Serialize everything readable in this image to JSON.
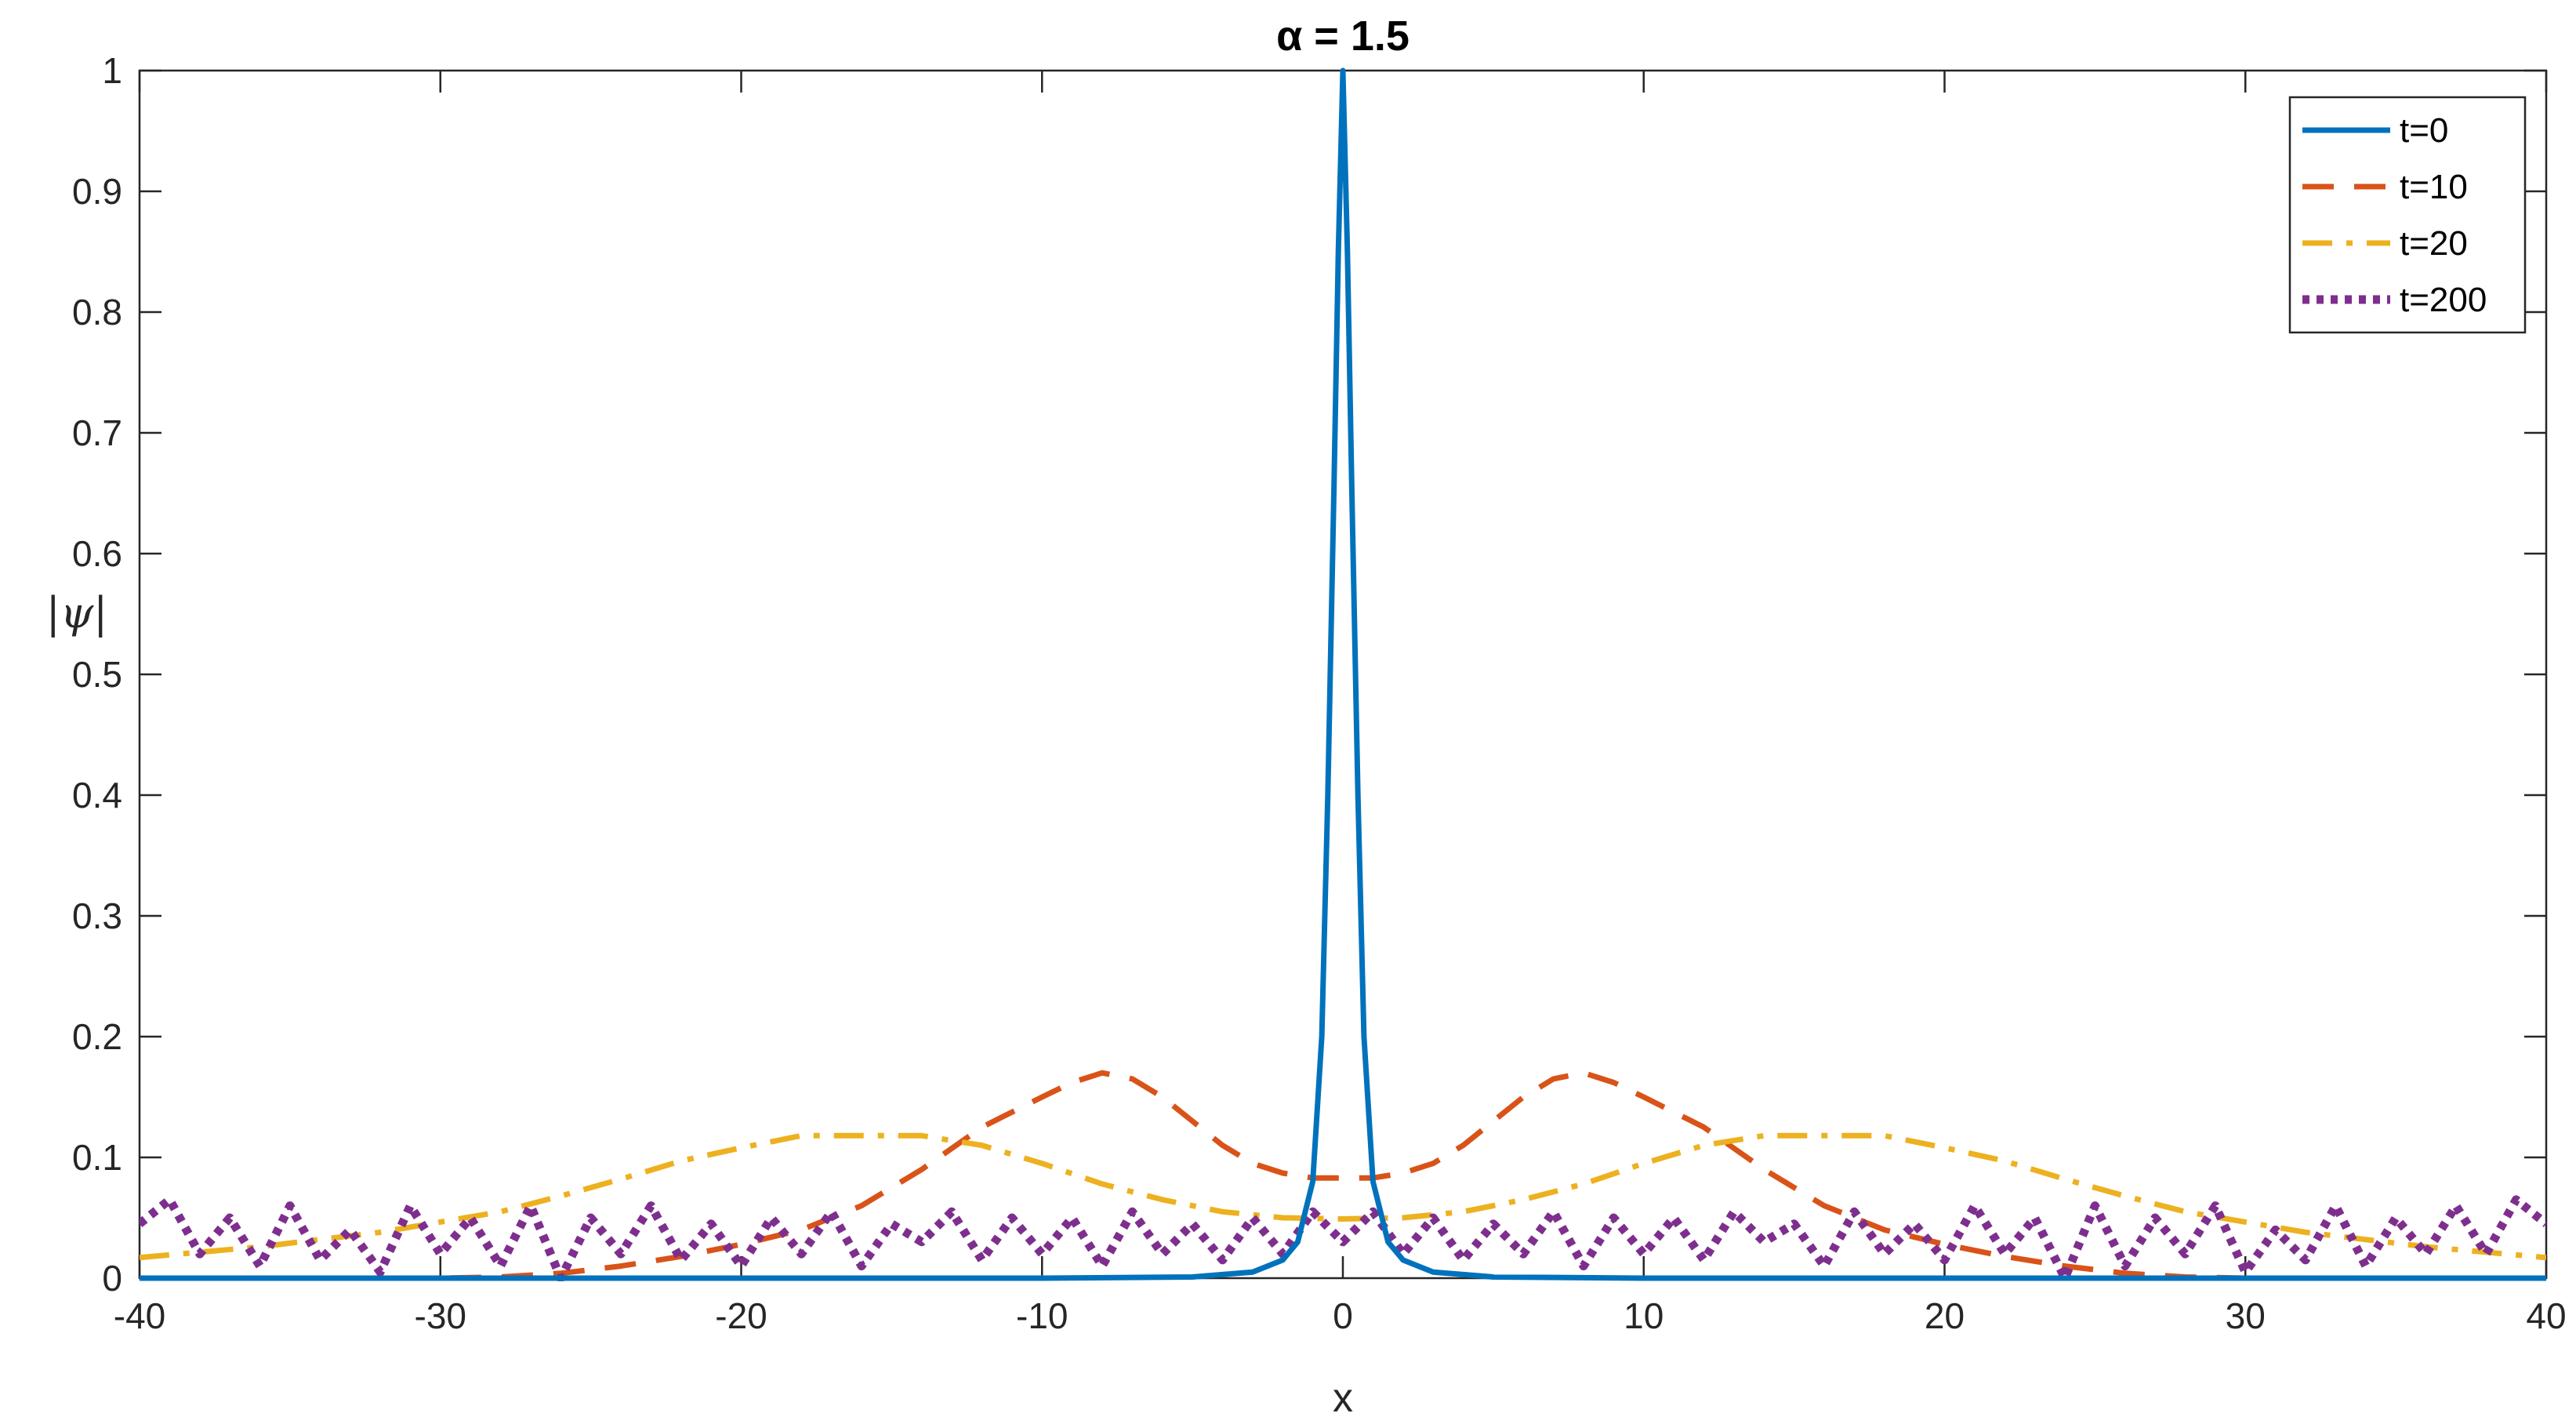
{
  "chart_data": {
    "type": "line",
    "title": "α = 1.5",
    "xlabel": "x",
    "ylabel": "|ψ|",
    "xlim": [
      -40,
      40
    ],
    "ylim": [
      0,
      1
    ],
    "xticks": [
      -40,
      -30,
      -20,
      -10,
      0,
      10,
      20,
      30,
      40
    ],
    "yticks": [
      0,
      0.1,
      0.2,
      0.3,
      0.4,
      0.5,
      0.6,
      0.7,
      0.8,
      0.9,
      1
    ],
    "xtick_labels": [
      "-40",
      "-30",
      "-20",
      "-10",
      "0",
      "10",
      "20",
      "30",
      "40"
    ],
    "ytick_labels": [
      "0",
      "0.1",
      "0.2",
      "0.3",
      "0.4",
      "0.5",
      "0.6",
      "0.7",
      "0.8",
      "0.9",
      "1"
    ],
    "grid": false,
    "legend_position": "top-right",
    "series": [
      {
        "name": "t=0",
        "color": "#0072BD",
        "style": "solid",
        "x": [
          -40,
          -20,
          -10,
          -5,
          -3,
          -2,
          -1.5,
          -1,
          -0.7,
          -0.5,
          -0.3,
          -0.15,
          0,
          0.15,
          0.3,
          0.5,
          0.7,
          1,
          1.5,
          2,
          3,
          5,
          10,
          20,
          40
        ],
        "y": [
          0,
          0,
          0,
          0.001,
          0.005,
          0.015,
          0.03,
          0.08,
          0.2,
          0.4,
          0.65,
          0.85,
          1.0,
          0.85,
          0.65,
          0.4,
          0.2,
          0.08,
          0.03,
          0.015,
          0.005,
          0.001,
          0,
          0,
          0
        ]
      },
      {
        "name": "t=10",
        "color": "#D95319",
        "style": "dashed",
        "x": [
          -40,
          -35,
          -30,
          -28,
          -26,
          -24,
          -22,
          -20,
          -18,
          -16,
          -14,
          -12,
          -10,
          -9,
          -8,
          -7,
          -6,
          -5,
          -4,
          -3,
          -2,
          -1,
          0,
          1,
          2,
          3,
          4,
          5,
          6,
          7,
          8,
          9,
          10,
          12,
          14,
          16,
          18,
          20,
          22,
          24,
          26,
          28,
          30,
          35,
          40
        ],
        "y": [
          0,
          0,
          0,
          0.001,
          0.004,
          0.01,
          0.018,
          0.028,
          0.04,
          0.06,
          0.09,
          0.125,
          0.15,
          0.162,
          0.17,
          0.165,
          0.15,
          0.13,
          0.11,
          0.095,
          0.087,
          0.083,
          0.083,
          0.083,
          0.087,
          0.095,
          0.11,
          0.13,
          0.15,
          0.165,
          0.17,
          0.162,
          0.15,
          0.125,
          0.09,
          0.06,
          0.04,
          0.028,
          0.018,
          0.01,
          0.004,
          0.001,
          0,
          0,
          0
        ]
      },
      {
        "name": "t=20",
        "color": "#EDB120",
        "style": "dashdot",
        "x": [
          -40,
          -36,
          -32,
          -28,
          -26,
          -24,
          -22,
          -20,
          -18,
          -16,
          -14,
          -12,
          -10,
          -8,
          -6,
          -4,
          -2,
          0,
          2,
          4,
          6,
          8,
          10,
          12,
          14,
          16,
          18,
          20,
          22,
          24,
          26,
          28,
          32,
          36,
          40
        ],
        "y": [
          0.017,
          0.026,
          0.038,
          0.055,
          0.068,
          0.082,
          0.097,
          0.108,
          0.118,
          0.118,
          0.118,
          0.11,
          0.095,
          0.078,
          0.065,
          0.055,
          0.05,
          0.049,
          0.05,
          0.055,
          0.065,
          0.078,
          0.095,
          0.11,
          0.118,
          0.118,
          0.118,
          0.108,
          0.097,
          0.082,
          0.068,
          0.055,
          0.038,
          0.026,
          0.017
        ]
      },
      {
        "name": "t=200",
        "color": "#7E2F8E",
        "style": "dotted",
        "x": [
          -40,
          -39,
          -38,
          -37,
          -36,
          -35,
          -34,
          -33,
          -32,
          -31,
          -30,
          -29,
          -28,
          -27,
          -26,
          -25,
          -24,
          -23,
          -22,
          -21,
          -20,
          -19,
          -18,
          -17,
          -16,
          -15,
          -14,
          -13,
          -12,
          -11,
          -10,
          -9,
          -8,
          -7,
          -6,
          -5,
          -4,
          -3,
          -2,
          -1,
          0,
          1,
          2,
          3,
          4,
          5,
          6,
          7,
          8,
          9,
          10,
          11,
          12,
          13,
          14,
          15,
          16,
          17,
          18,
          19,
          20,
          21,
          22,
          23,
          24,
          25,
          26,
          27,
          28,
          29,
          30,
          31,
          32,
          33,
          34,
          35,
          36,
          37,
          38,
          39,
          40
        ],
        "y": [
          0.045,
          0.065,
          0.02,
          0.05,
          0.01,
          0.06,
          0.015,
          0.04,
          0.005,
          0.06,
          0.02,
          0.05,
          0.01,
          0.06,
          0.0,
          0.05,
          0.02,
          0.06,
          0.015,
          0.045,
          0.01,
          0.05,
          0.02,
          0.055,
          0.01,
          0.045,
          0.03,
          0.055,
          0.015,
          0.05,
          0.02,
          0.05,
          0.01,
          0.055,
          0.02,
          0.045,
          0.015,
          0.05,
          0.02,
          0.055,
          0.03,
          0.055,
          0.02,
          0.05,
          0.015,
          0.045,
          0.02,
          0.055,
          0.01,
          0.05,
          0.02,
          0.05,
          0.015,
          0.055,
          0.03,
          0.045,
          0.01,
          0.055,
          0.02,
          0.045,
          0.015,
          0.06,
          0.02,
          0.05,
          0.0,
          0.06,
          0.01,
          0.05,
          0.02,
          0.06,
          0.005,
          0.04,
          0.015,
          0.06,
          0.01,
          0.05,
          0.02,
          0.06,
          0.02,
          0.065,
          0.045
        ]
      }
    ]
  }
}
